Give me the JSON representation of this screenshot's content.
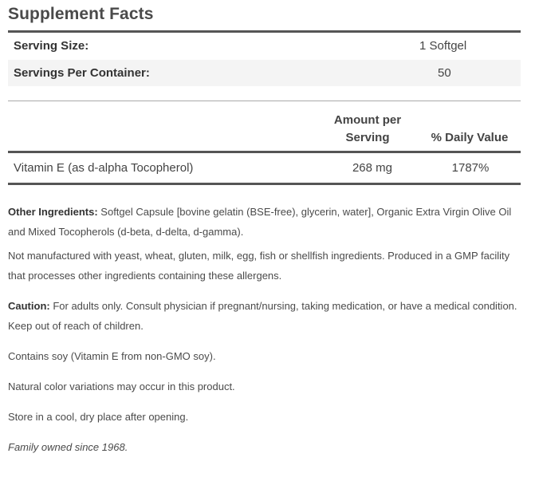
{
  "title": "Supplement Facts",
  "serving_size": {
    "label": "Serving Size:",
    "value": "1 Softgel"
  },
  "servings_per_container": {
    "label": "Servings Per Container:",
    "value": "50"
  },
  "columns": {
    "amount_line1": "Amount per",
    "amount_line2": "Serving",
    "daily_value": "% Daily Value"
  },
  "nutrients": [
    {
      "name": "Vitamin E (as d-alpha Tocopherol)",
      "amount": "268 mg",
      "daily_value": "1787%"
    }
  ],
  "other_ingredients": {
    "label": "Other Ingredients:",
    "text": " Softgel Capsule [bovine gelatin (BSE-free), glycerin, water], Organic Extra Virgin Olive Oil and Mixed Tocopherols (d-beta, d-delta, d-gamma)."
  },
  "allergen_note": "Not manufactured with yeast, wheat, gluten, milk, egg, fish or shellfish ingredients. Produced in a GMP facility that processes other ingredients containing these allergens.",
  "caution": {
    "label": "Caution:",
    "text": " For adults only. Consult physician if pregnant/nursing, taking medication, or have a medical condition. Keep out of reach of children."
  },
  "soy_note": "Contains soy (Vitamin E from non-GMO soy).",
  "color_note": "Natural color variations may occur in this product.",
  "storage_note": "Store in a cool, dry place after opening.",
  "family_note": "Family owned since 1968."
}
